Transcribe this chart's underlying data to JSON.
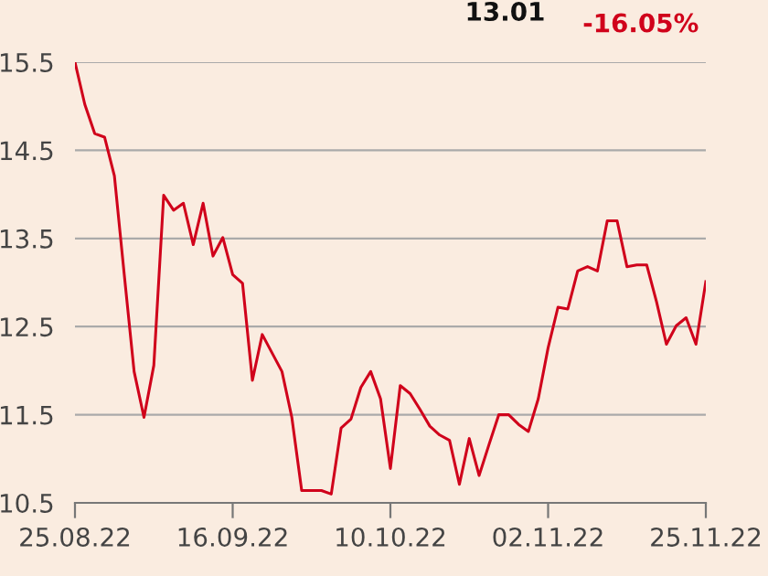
{
  "chart_data": {
    "type": "line",
    "categories": [
      "25.08.22",
      null,
      null,
      null,
      null,
      null,
      null,
      null,
      null,
      null,
      null,
      null,
      null,
      null,
      null,
      null,
      "16.09.22",
      null,
      null,
      null,
      null,
      null,
      null,
      null,
      null,
      null,
      null,
      null,
      null,
      null,
      null,
      null,
      "10.10.22",
      null,
      null,
      null,
      null,
      null,
      null,
      null,
      null,
      null,
      null,
      null,
      null,
      null,
      null,
      null,
      "02.11.22",
      null,
      null,
      null,
      null,
      null,
      null,
      null,
      null,
      null,
      null,
      null,
      null,
      null,
      null,
      null,
      "25.11.22"
    ],
    "series": [
      {
        "color": "#d0021b",
        "values": [
          15.5,
          15.02,
          14.69,
          14.65,
          14.21,
          13.09,
          11.99,
          11.47,
          12.06,
          13.99,
          13.82,
          13.9,
          13.43,
          13.9,
          13.3,
          13.51,
          13.09,
          12.99,
          11.89,
          12.41,
          12.2,
          11.99,
          11.47,
          10.64,
          10.64,
          10.64,
          10.6,
          11.35,
          11.45,
          11.81,
          11.99,
          11.68,
          10.89,
          11.83,
          11.74,
          11.56,
          11.37,
          11.27,
          11.21,
          10.71,
          11.23,
          10.81,
          11.16,
          11.5,
          11.5,
          11.39,
          11.31,
          11.68,
          12.26,
          12.72,
          12.7,
          13.13,
          13.18,
          13.13,
          13.7,
          13.7,
          13.18,
          13.2,
          13.2,
          12.78,
          12.3,
          12.51,
          12.6,
          12.3,
          13.01
        ]
      }
    ],
    "ylim": [
      10.5,
      15.5
    ],
    "yticks": [
      10.5,
      11.5,
      12.5,
      13.5,
      14.5,
      15.5
    ],
    "grid": "y",
    "annotations": [
      "13.01",
      "-16.05%"
    ]
  }
}
